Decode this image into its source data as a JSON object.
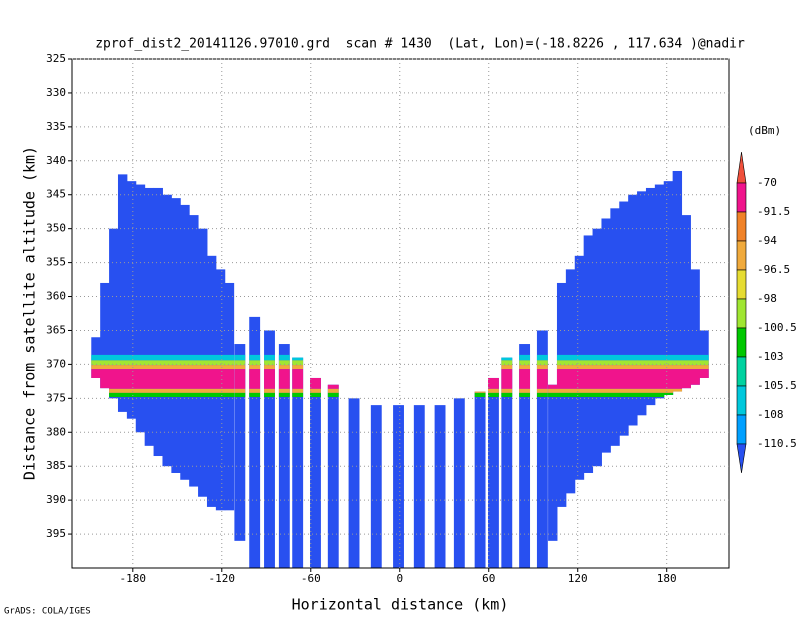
{
  "chart_data": {
    "type": "profile",
    "title": "zprof_dist2_20141126.97010.grd  scan # 1430  (Lat, Lon)=(-18.8226 , 117.634 )@nadir",
    "x_label": "Horizontal distance (km)",
    "y_label": "Distance from satellite altitude (km)",
    "footer": "GrADS: COLA/IGES",
    "colorbar_unit": "(dBm)",
    "xlim": [
      -221,
      222
    ],
    "xticks": [
      -180,
      -120,
      -60,
      0,
      60,
      120,
      180
    ],
    "ylim": [
      325,
      400
    ],
    "yticks": [
      325,
      330,
      335,
      340,
      345,
      350,
      355,
      360,
      365,
      370,
      375,
      380,
      385,
      390,
      395
    ],
    "grid": true,
    "levels": [
      -70,
      -91.5,
      -94,
      -96.5,
      -98,
      -100.5,
      -103,
      -105.5,
      -108,
      -110.5
    ],
    "colors": [
      "#f0503c",
      "#f0148c",
      "#f08228",
      "#f0aa3c",
      "#e6dc32",
      "#a0e632",
      "#00c800",
      "#00d2a0",
      "#00c8dc",
      "#00a0ff",
      "#2850f0"
    ],
    "columns": {
      "x": [
        -205,
        -199,
        -193,
        -187,
        -181,
        -175,
        -169,
        -163,
        -157,
        -151,
        -145,
        -139,
        -133,
        -127,
        -121,
        -115,
        -108,
        -98,
        -88,
        -78,
        -69,
        -57,
        -45,
        -31,
        -16,
        -1,
        13,
        27,
        40,
        54,
        63,
        72,
        84,
        96,
        103,
        109,
        115,
        121,
        127,
        133,
        139,
        145,
        151,
        157,
        163,
        169,
        175,
        181,
        187,
        193,
        199,
        205
      ],
      "top": [
        366,
        358,
        350,
        342,
        343,
        343.5,
        344,
        344,
        345,
        345.5,
        346.5,
        348,
        350,
        354,
        356,
        358,
        367,
        363,
        365,
        367,
        369,
        372,
        373,
        375,
        376,
        376,
        376,
        376,
        375,
        374,
        372,
        369,
        367,
        365,
        373,
        358,
        356,
        354,
        351,
        350,
        348.5,
        347,
        346,
        345,
        344.5,
        344,
        343.5,
        343,
        341.5,
        348,
        356,
        365
      ],
      "bottom": [
        372,
        373.5,
        375,
        377,
        378,
        380,
        382,
        383.5,
        385,
        386,
        387,
        388,
        389.5,
        391,
        391.5,
        391.5,
        396,
        400,
        400,
        400,
        400,
        400,
        400,
        400,
        400,
        400,
        400,
        400,
        400,
        400,
        400,
        400,
        400,
        400,
        396,
        391,
        389,
        387,
        386,
        385,
        383,
        382,
        380.5,
        379,
        377.5,
        376,
        375,
        374.5,
        374,
        373.5,
        373,
        372
      ],
      "value": -112
    },
    "bright_band": [
      {
        "top": 368.6,
        "bottom": 369.4,
        "value": -105.5
      },
      {
        "top": 369.4,
        "bottom": 370.1,
        "value": -98
      },
      {
        "top": 370.1,
        "bottom": 370.7,
        "value": -94
      },
      {
        "top": 370.7,
        "bottom": 373.6,
        "value": -80
      },
      {
        "top": 373.6,
        "bottom": 374.2,
        "value": -94
      },
      {
        "top": 374.2,
        "bottom": 374.8,
        "value": -100.5
      }
    ]
  }
}
